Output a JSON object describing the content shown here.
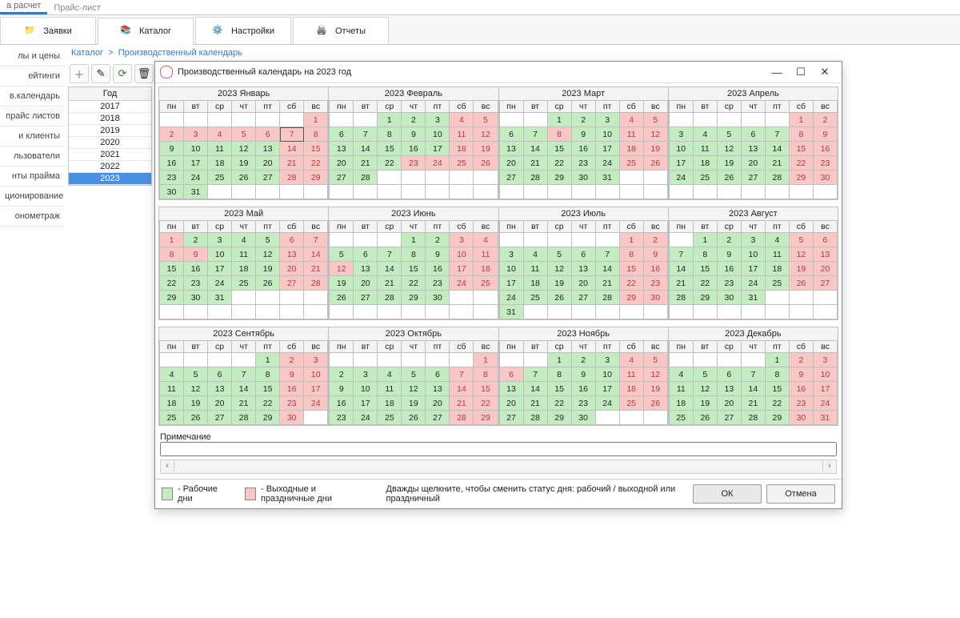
{
  "secondary_tabs": [
    "а расчет",
    "Прайс-лист"
  ],
  "secondary_tabs_active_index": 0,
  "main_tabs": [
    {
      "label": "Заявки"
    },
    {
      "label": "Каталог"
    },
    {
      "label": "Настройки"
    },
    {
      "label": "Отчеты"
    }
  ],
  "main_tabs_active_index": 1,
  "side_menu": [
    "лы и цены",
    "ейтинги",
    "в.календарь",
    " прайс листов",
    "и клиенты",
    "льзователи",
    "нты прайма",
    "ционирование",
    "онометраж"
  ],
  "side_menu_active_index": 2,
  "breadcrumb": {
    "root": "Каталог",
    "sep": ">",
    "current": "Производственный календарь"
  },
  "toolbar_icons": [
    "plus",
    "edit",
    "refresh",
    "delete"
  ],
  "year_list": {
    "header": "Год",
    "items": [
      2017,
      2018,
      2019,
      2020,
      2021,
      2022,
      2023
    ],
    "selected": 2023
  },
  "modal": {
    "title": "Производственный календарь на 2023 год",
    "weekday_labels": [
      "пн",
      "вт",
      "ср",
      "чт",
      "пт",
      "сб",
      "вс"
    ],
    "month_titles": [
      "2023 Январь",
      "2023 Февраль",
      "2023 Март",
      "2023 Апрель",
      "2023 Май",
      "2023 Июнь",
      "2023 Июль",
      "2023 Август",
      "2023 Сентябрь",
      "2023 Октябрь",
      "2023 Ноябрь",
      "2023 Декабрь"
    ],
    "note_label": "Примечание",
    "legend": {
      "work_color": "#c3edc0",
      "off_color": "#f8c7c6",
      "work_label": "- Рабочие дни",
      "off_label": "- Выходные и праздничные дни",
      "hint": "Дважды щелкните, чтобы сменить статус дня: рабочий / выходной или праздничный"
    },
    "buttons": {
      "ok": "ОК",
      "cancel": "Отмена"
    },
    "colors": {
      "work": "#c3edc0",
      "off": "#f8c7c6",
      "grid": "#bfbfbf",
      "header_bg": "#f4f4f4",
      "today_border": "#555555",
      "year_selected_bg": "#4a90e2",
      "accent": "#2e7bd6"
    },
    "today": {
      "month": "2023 Январь",
      "day": 7
    },
    "calendar": [
      {
        "name": "2023 Январь",
        "lead": 6,
        "len": 31,
        "rows": 6,
        "off": [
          1,
          2,
          3,
          4,
          5,
          6,
          7,
          8,
          14,
          15,
          21,
          22,
          28,
          29
        ]
      },
      {
        "name": "2023 Февраль",
        "lead": 2,
        "len": 28,
        "rows": 5,
        "off": [
          4,
          5,
          11,
          12,
          18,
          19,
          23,
          24,
          25,
          26
        ]
      },
      {
        "name": "2023 Март",
        "lead": 2,
        "len": 31,
        "rows": 5,
        "off": [
          4,
          5,
          8,
          11,
          12,
          18,
          19,
          25,
          26
        ]
      },
      {
        "name": "2023 Апрель",
        "lead": 5,
        "len": 30,
        "rows": 5,
        "off": [
          1,
          2,
          8,
          9,
          15,
          16,
          22,
          23,
          29,
          30
        ]
      },
      {
        "name": "2023 Май",
        "lead": 0,
        "len": 31,
        "rows": 5,
        "off": [
          1,
          6,
          7,
          8,
          9,
          13,
          14,
          20,
          21,
          27,
          28
        ]
      },
      {
        "name": "2023 Июнь",
        "lead": 3,
        "len": 30,
        "rows": 5,
        "off": [
          3,
          4,
          10,
          11,
          12,
          17,
          18,
          24,
          25
        ]
      },
      {
        "name": "2023 Июль",
        "lead": 5,
        "len": 31,
        "rows": 6,
        "off": [
          1,
          2,
          8,
          9,
          15,
          16,
          22,
          23,
          29,
          30
        ]
      },
      {
        "name": "2023 Август",
        "lead": 1,
        "len": 31,
        "rows": 5,
        "off": [
          5,
          6,
          12,
          13,
          19,
          20,
          26,
          27
        ]
      },
      {
        "name": "2023 Сентябрь",
        "lead": 4,
        "len": 30,
        "rows": 5,
        "off": [
          2,
          3,
          9,
          10,
          16,
          17,
          23,
          24,
          30
        ]
      },
      {
        "name": "2023 Октябрь",
        "lead": 6,
        "len": 31,
        "rows": 5,
        "off": [
          1,
          7,
          8,
          14,
          15,
          21,
          22,
          28,
          29
        ]
      },
      {
        "name": "2023 Ноябрь",
        "lead": 2,
        "len": 30,
        "rows": 5,
        "off": [
          4,
          5,
          6,
          11,
          12,
          18,
          19,
          25,
          26
        ]
      },
      {
        "name": "2023 Декабрь",
        "lead": 4,
        "len": 31,
        "rows": 5,
        "off": [
          2,
          3,
          9,
          10,
          16,
          17,
          23,
          24,
          30,
          31
        ]
      }
    ]
  }
}
